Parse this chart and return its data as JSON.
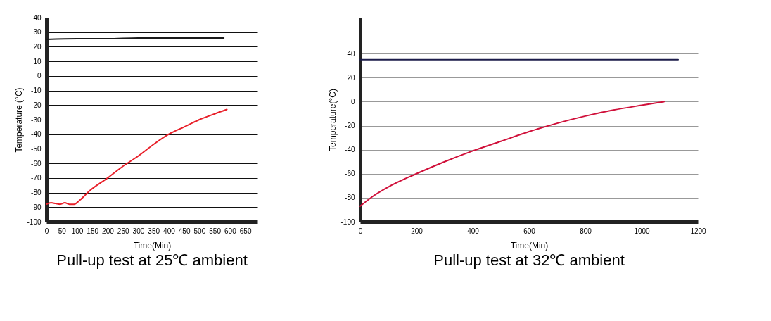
{
  "chart_data": [
    {
      "type": "line",
      "title": "Pull-up test at 25℃ ambient",
      "xlabel": "Time(Min)",
      "ylabel": "Temperature (°C)",
      "xlim": [
        0,
        690
      ],
      "xticks": [
        0,
        50,
        100,
        150,
        200,
        250,
        300,
        350,
        400,
        450,
        500,
        550,
        600,
        650
      ],
      "ylim": [
        -100,
        40
      ],
      "yticks": [
        -100,
        -90,
        -80,
        -70,
        -60,
        -50,
        -40,
        -30,
        -20,
        -10,
        0,
        10,
        20,
        30,
        40
      ],
      "grid": "y",
      "series": [
        {
          "color": "#1a1a1a",
          "x": [
            0,
            100,
            200,
            300,
            400,
            500,
            580
          ],
          "values": [
            25,
            25.5,
            25.5,
            26,
            26,
            26,
            26
          ]
        },
        {
          "color": "#e8202a",
          "x": [
            0,
            15,
            30,
            45,
            60,
            75,
            90,
            110,
            140,
            200,
            250,
            300,
            350,
            400,
            450,
            500,
            550,
            590
          ],
          "values": [
            -88,
            -87,
            -87.5,
            -88,
            -87,
            -88,
            -88,
            -85,
            -79,
            -70,
            -62,
            -55,
            -47,
            -40,
            -35,
            -30,
            -26,
            -23
          ]
        }
      ]
    },
    {
      "type": "line",
      "title": "Pull-up test at 32℃ ambient",
      "xlabel": "Time(Min)",
      "ylabel": "Temperature(°C)",
      "xlim": [
        0,
        1200
      ],
      "xticks": [
        0,
        200,
        400,
        600,
        800,
        1000,
        1200
      ],
      "ylim": [
        -100,
        70
      ],
      "yticks": [
        -100,
        -80,
        -60,
        -40,
        -20,
        0,
        20,
        40,
        {
          "value": 60,
          "label": null
        }
      ],
      "grid": "y",
      "series": [
        {
          "color": "#1c1c4a",
          "x": [
            0,
            1130
          ],
          "values": [
            35,
            35
          ]
        },
        {
          "color": "#d0103a",
          "x": [
            0,
            50,
            100,
            200,
            300,
            400,
            500,
            600,
            700,
            800,
            900,
            1000,
            1080
          ],
          "values": [
            -87,
            -78,
            -71,
            -60,
            -50,
            -41,
            -33,
            -25,
            -18,
            -12,
            -7,
            -3,
            0
          ]
        }
      ]
    }
  ]
}
